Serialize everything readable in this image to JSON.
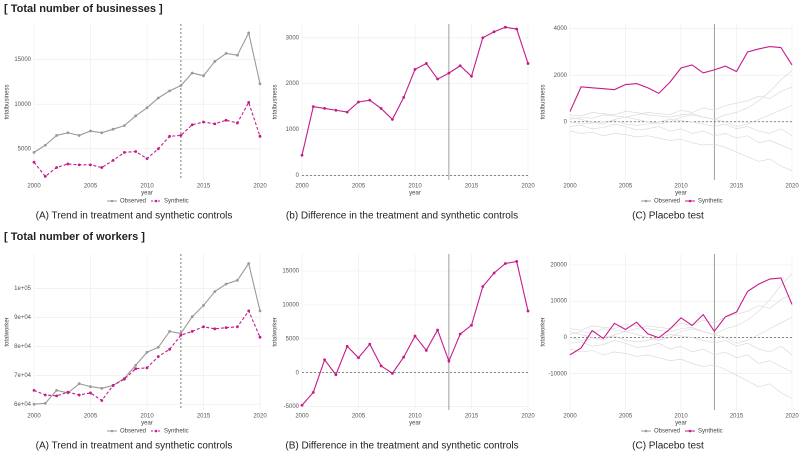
{
  "sections": [
    "[ Total number of businesses ]",
    "[ Total number of workers ]"
  ],
  "chart_data": [
    {
      "type": "line",
      "caption": "(A) Trend in treatment and synthetic controls",
      "xlabel": "year",
      "ylabel": "totalbusiness",
      "x": [
        2000,
        2001,
        2002,
        2003,
        2004,
        2005,
        2006,
        2007,
        2008,
        2009,
        2010,
        2011,
        2012,
        2013,
        2014,
        2015,
        2016,
        2017,
        2018,
        2019,
        2020
      ],
      "xlim": [
        2000,
        2020
      ],
      "xticks": [
        2000,
        2005,
        2010,
        2015,
        2020
      ],
      "ylim": [
        1500,
        19000
      ],
      "yticks": [
        5000,
        10000,
        15000
      ],
      "vline": 2013,
      "vline_dashed": true,
      "grid": true,
      "series": [
        {
          "name": "Observed",
          "color": "#9a9a9a",
          "markers": true,
          "dashed": false,
          "values": [
            4600,
            5400,
            6500,
            6800,
            6500,
            7000,
            6800,
            7200,
            7600,
            8700,
            9600,
            10700,
            11500,
            12100,
            13500,
            13200,
            14800,
            15700,
            15500,
            18000,
            12300
          ]
        },
        {
          "name": "Synthetic",
          "color": "#c51b8a",
          "markers": true,
          "dashed": true,
          "values": [
            3500,
            1900,
            2900,
            3300,
            3200,
            3200,
            2900,
            3700,
            4600,
            4700,
            3900,
            5000,
            6400,
            6500,
            7700,
            8000,
            7800,
            8200,
            7900,
            10200,
            6400
          ]
        }
      ]
    },
    {
      "type": "line",
      "caption": "(b) Difference in the treatment and synthetic controls",
      "xlabel": "year",
      "ylabel": "totalbusiness",
      "x": [
        2000,
        2001,
        2002,
        2003,
        2004,
        2005,
        2006,
        2007,
        2008,
        2009,
        2010,
        2011,
        2012,
        2013,
        2014,
        2015,
        2016,
        2017,
        2018,
        2019,
        2020
      ],
      "xlim": [
        2000,
        2020
      ],
      "xticks": [
        2000,
        2005,
        2010,
        2015,
        2020
      ],
      "ylim": [
        -100,
        3300
      ],
      "yticks": [
        0,
        1000,
        2000,
        3000
      ],
      "vline": 2013,
      "vline_dashed": false,
      "hline": 0,
      "grid": true,
      "series": [
        {
          "color": "#c51b8a",
          "markers": true,
          "dashed": false,
          "values": [
            440,
            1500,
            1460,
            1420,
            1380,
            1600,
            1640,
            1460,
            1220,
            1700,
            2310,
            2440,
            2100,
            2230,
            2390,
            2160,
            3000,
            3130,
            3230,
            3190,
            2440
          ]
        }
      ]
    },
    {
      "type": "line",
      "caption": "(C) Placebo test",
      "xlabel": "year",
      "ylabel": "totalbusiness",
      "x": [
        2000,
        2001,
        2002,
        2003,
        2004,
        2005,
        2006,
        2007,
        2008,
        2009,
        2010,
        2011,
        2012,
        2013,
        2014,
        2015,
        2016,
        2017,
        2018,
        2019,
        2020
      ],
      "xlim": [
        2000,
        2020
      ],
      "xticks": [
        2000,
        2005,
        2010,
        2015,
        2020
      ],
      "ylim": [
        -2500,
        4200
      ],
      "yticks": [
        0,
        2000,
        4000
      ],
      "vline": 2013,
      "vline_dashed": false,
      "hline": 0,
      "grid": true,
      "legend": [
        {
          "name": "Observed",
          "color": "#9a9a9a"
        },
        {
          "name": "Synthetic",
          "color": "#c51b8a"
        }
      ],
      "series": [
        {
          "color": "#d6d6d6",
          "markers": false,
          "dashed": false,
          "values": [
            -200,
            -150,
            -300,
            -250,
            -100,
            -200,
            -350,
            -300,
            -200,
            -400,
            -300,
            -500,
            -400,
            -600,
            -500,
            -700,
            -600,
            -900,
            -800,
            -1000,
            -1200
          ]
        },
        {
          "color": "#d6d6d6",
          "markers": false,
          "dashed": false,
          "values": [
            100,
            200,
            150,
            300,
            250,
            200,
            300,
            400,
            350,
            300,
            500,
            400,
            600,
            500,
            700,
            800,
            900,
            1100,
            1000,
            1300,
            1500
          ]
        },
        {
          "color": "#d6d6d6",
          "markers": false,
          "dashed": false,
          "values": [
            0,
            -100,
            -50,
            0,
            50,
            -100,
            -150,
            -100,
            0,
            100,
            50,
            0,
            -100,
            -200,
            -100,
            -300,
            -200,
            -400,
            -500,
            -300,
            -600
          ]
        },
        {
          "color": "#d6d6d6",
          "markers": false,
          "dashed": false,
          "values": [
            300,
            250,
            400,
            350,
            300,
            450,
            400,
            300,
            250,
            200,
            300,
            350,
            200,
            100,
            300,
            400,
            600,
            900,
            1300,
            1800,
            2200
          ]
        },
        {
          "color": "#d6d6d6",
          "markers": false,
          "dashed": false,
          "values": [
            -400,
            -500,
            -450,
            -600,
            -500,
            -550,
            -650,
            -600,
            -700,
            -800,
            -750,
            -900,
            -1000,
            -950,
            -1100,
            -1300,
            -1500,
            -1700,
            -1600,
            -1900,
            -2100
          ]
        },
        {
          "color": "#d6d6d6",
          "markers": false,
          "dashed": false,
          "values": [
            200,
            100,
            0,
            -100,
            100,
            200,
            100,
            0,
            -100,
            0,
            200,
            300,
            200,
            100,
            0,
            -200,
            -100,
            100,
            300,
            500,
            700
          ]
        },
        {
          "color": "#c51b8a",
          "markers": false,
          "dashed": false,
          "values": [
            440,
            1500,
            1460,
            1420,
            1380,
            1600,
            1640,
            1460,
            1220,
            1700,
            2310,
            2440,
            2100,
            2230,
            2390,
            2160,
            3000,
            3130,
            3230,
            3190,
            2440
          ]
        }
      ]
    },
    {
      "type": "line",
      "caption": "(A) Trend in treatment and synthetic controls",
      "xlabel": "year",
      "ylabel": "totalworker",
      "x": [
        2000,
        2001,
        2002,
        2003,
        2004,
        2005,
        2006,
        2007,
        2008,
        2009,
        2010,
        2011,
        2012,
        2013,
        2014,
        2015,
        2016,
        2017,
        2018,
        2019,
        2020
      ],
      "xlim": [
        2000,
        2020
      ],
      "xticks": [
        2000,
        2005,
        2010,
        2015,
        2020
      ],
      "ylim": [
        58000,
        112000
      ],
      "yticks": [
        {
          "value": 60000,
          "label": "6e+04"
        },
        {
          "value": 70000,
          "label": "7e+04"
        },
        {
          "value": 80000,
          "label": "8e+04"
        },
        {
          "value": 90000,
          "label": "9e+04"
        },
        {
          "value": 100000,
          "label": "1e+05"
        }
      ],
      "vline": 2013,
      "vline_dashed": true,
      "grid": true,
      "series": [
        {
          "name": "Observed",
          "color": "#9a9a9a",
          "markers": true,
          "dashed": false,
          "values": [
            60000,
            60300,
            64800,
            63900,
            67100,
            66100,
            65500,
            66500,
            69000,
            73500,
            78000,
            79700,
            85200,
            84500,
            90300,
            94200,
            99000,
            101600,
            102900,
            108700,
            92300
          ]
        },
        {
          "name": "Synthetic",
          "color": "#c51b8a",
          "markers": true,
          "dashed": true,
          "values": [
            64800,
            63200,
            62900,
            64200,
            63200,
            63900,
            61300,
            66500,
            68700,
            72300,
            72600,
            76500,
            79000,
            83900,
            85200,
            86800,
            86100,
            86500,
            86800,
            92300,
            83200
          ]
        }
      ]
    },
    {
      "type": "line",
      "caption": "(B) Difference in the treatment and synthetic controls",
      "xlabel": "year",
      "ylabel": "totalworker",
      "x": [
        2000,
        2001,
        2002,
        2003,
        2004,
        2005,
        2006,
        2007,
        2008,
        2009,
        2010,
        2011,
        2012,
        2013,
        2014,
        2015,
        2016,
        2017,
        2018,
        2019,
        2020
      ],
      "xlim": [
        2000,
        2020
      ],
      "xticks": [
        2000,
        2005,
        2010,
        2015,
        2020
      ],
      "ylim": [
        -5500,
        17500
      ],
      "yticks": [
        -5000,
        0,
        5000,
        10000,
        15000
      ],
      "vline": 2013,
      "vline_dashed": false,
      "hline": 0,
      "grid": true,
      "series": [
        {
          "color": "#c51b8a",
          "markers": true,
          "dashed": false,
          "values": [
            -4800,
            -2900,
            1900,
            -300,
            3900,
            2200,
            4200,
            1000,
            -100,
            2300,
            5400,
            3300,
            6300,
            1700,
            5700,
            7000,
            12700,
            14700,
            16100,
            16400,
            9100
          ]
        }
      ]
    },
    {
      "type": "line",
      "caption": "(C) Placebo test",
      "xlabel": "year",
      "ylabel": "totalworker",
      "x": [
        2000,
        2001,
        2002,
        2003,
        2004,
        2005,
        2006,
        2007,
        2008,
        2009,
        2010,
        2011,
        2012,
        2013,
        2014,
        2015,
        2016,
        2017,
        2018,
        2019,
        2020
      ],
      "xlim": [
        2000,
        2020
      ],
      "xticks": [
        2000,
        2005,
        2010,
        2015,
        2020
      ],
      "ylim": [
        -20000,
        23000
      ],
      "yticks": [
        -10000,
        0,
        10000,
        20000
      ],
      "vline": 2013,
      "vline_dashed": false,
      "hline": 0,
      "grid": true,
      "legend": [
        {
          "name": "Observed",
          "color": "#9a9a9a"
        },
        {
          "name": "Synthetic",
          "color": "#c51b8a"
        }
      ],
      "series": [
        {
          "color": "#d6d6d6",
          "markers": false,
          "dashed": false,
          "values": [
            -1600,
            -1200,
            -2400,
            -2000,
            -800,
            -1600,
            -2800,
            -2400,
            -1600,
            -3200,
            -2400,
            -4000,
            -3200,
            -4800,
            -4000,
            -5600,
            -4800,
            -7200,
            -6400,
            -8000,
            -9600
          ]
        },
        {
          "color": "#d6d6d6",
          "markers": false,
          "dashed": false,
          "values": [
            800,
            1600,
            1200,
            2400,
            2000,
            1600,
            2400,
            3200,
            2800,
            2400,
            4000,
            3200,
            4800,
            4000,
            5600,
            6400,
            7200,
            8800,
            8000,
            10400,
            12000
          ]
        },
        {
          "color": "#d6d6d6",
          "markers": false,
          "dashed": false,
          "values": [
            0,
            -800,
            -400,
            0,
            400,
            -800,
            -1200,
            -800,
            0,
            800,
            400,
            0,
            -800,
            -1600,
            -800,
            -2400,
            -1600,
            -3200,
            -4000,
            -2400,
            -4800
          ]
        },
        {
          "color": "#d6d6d6",
          "markers": false,
          "dashed": false,
          "values": [
            2400,
            2000,
            3200,
            2800,
            2400,
            3600,
            3200,
            2400,
            2000,
            1600,
            2400,
            2800,
            1600,
            800,
            2400,
            3200,
            4800,
            7200,
            10400,
            14400,
            17600
          ]
        },
        {
          "color": "#d6d6d6",
          "markers": false,
          "dashed": false,
          "values": [
            -3200,
            -4000,
            -3600,
            -4800,
            -4000,
            -4400,
            -5200,
            -4800,
            -5600,
            -6400,
            -6000,
            -7200,
            -8000,
            -7600,
            -8800,
            -10400,
            -12000,
            -13600,
            -12800,
            -15200,
            -16800
          ]
        },
        {
          "color": "#d6d6d6",
          "markers": false,
          "dashed": false,
          "values": [
            1600,
            800,
            0,
            -800,
            800,
            1600,
            800,
            0,
            -800,
            0,
            1600,
            2400,
            1600,
            800,
            0,
            -1600,
            -800,
            800,
            2400,
            4000,
            5600
          ]
        },
        {
          "color": "#c51b8a",
          "markers": false,
          "dashed": false,
          "values": [
            -4800,
            -2900,
            1900,
            -300,
            3900,
            2200,
            4200,
            1000,
            -100,
            2300,
            5400,
            3300,
            6300,
            1700,
            5700,
            7000,
            12700,
            14700,
            16100,
            16400,
            9100
          ]
        }
      ]
    }
  ]
}
